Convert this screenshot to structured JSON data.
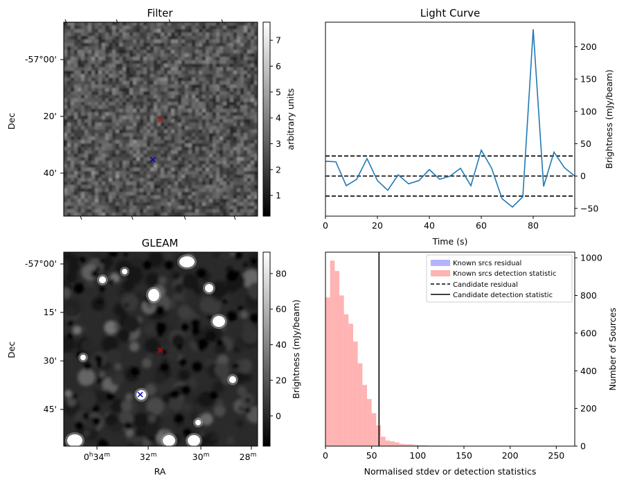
{
  "panels": {
    "filter": {
      "title": "Filter",
      "ylabel": "Dec",
      "yticks": [
        "-57°00'",
        "20'",
        "40'"
      ],
      "colorbar": {
        "label": "arbitrary units",
        "ticks": [
          "1",
          "2",
          "3",
          "4",
          "5",
          "6",
          "7"
        ],
        "range": [
          0.2,
          7.7
        ]
      },
      "markers": [
        {
          "symbol": "x",
          "color": "#d40000"
        },
        {
          "symbol": "x",
          "color": "#0000cc"
        }
      ]
    },
    "gleam": {
      "title": "GLEAM",
      "ylabel": "Dec",
      "xlabel": "RA",
      "yticks": [
        "-57°00'",
        "15'",
        "30'",
        "45'"
      ],
      "xticks": [
        {
          "hh": "0",
          "mm": "34"
        },
        {
          "hh": "",
          "mm": "32"
        },
        {
          "hh": "",
          "mm": "30"
        },
        {
          "hh": "",
          "mm": "28"
        }
      ],
      "colorbar": {
        "label": "Brightness (mJy/beam)",
        "ticks": [
          "0",
          "20",
          "40",
          "60",
          "80"
        ],
        "range": [
          -17,
          92
        ]
      },
      "markers": [
        {
          "symbol": "x",
          "color": "#d40000"
        },
        {
          "symbol": "x",
          "color": "#0000cc"
        }
      ]
    }
  },
  "chart_data": [
    {
      "type": "line",
      "title": "Light Curve",
      "xlabel": "Time (s)",
      "ylabel": "Brightness (mJy/beam)",
      "xlim": [
        0,
        96
      ],
      "ylim": [
        -62,
        238
      ],
      "xticks": [
        0,
        20,
        40,
        60,
        80
      ],
      "yticks": [
        -50,
        0,
        50,
        100,
        150,
        200
      ],
      "color": "#1f77b4",
      "x": [
        0,
        4,
        8,
        12,
        16,
        20,
        24,
        28,
        32,
        36,
        40,
        44,
        48,
        52,
        56,
        60,
        64,
        68,
        72,
        76,
        80,
        84,
        88,
        92,
        96
      ],
      "y": [
        23,
        22,
        -15,
        -5,
        27,
        -7,
        -22,
        2,
        -12,
        -7,
        10,
        -5,
        0,
        12,
        -15,
        40,
        12,
        -35,
        -48,
        -32,
        227,
        -16,
        37,
        13,
        0
      ],
      "hlines": [
        31,
        0,
        -31
      ]
    },
    {
      "type": "bar",
      "ylabel": "Number of Sources",
      "xlabel": "Normalised stdev or detection statistics",
      "xlim": [
        0,
        270
      ],
      "ylim": [
        0,
        1030
      ],
      "xticks": [
        0,
        50,
        100,
        150,
        200,
        250
      ],
      "yticks": [
        0,
        200,
        400,
        600,
        800,
        1000
      ],
      "bin_width": 5,
      "color": "#ff9999",
      "values": [
        790,
        985,
        930,
        800,
        700,
        650,
        555,
        440,
        325,
        250,
        175,
        110,
        50,
        30,
        25,
        20,
        12,
        10,
        10,
        7,
        5,
        5,
        3,
        3,
        3,
        2,
        2,
        2,
        2,
        2,
        1,
        1,
        1,
        1,
        1,
        1,
        1,
        1,
        1,
        1,
        1,
        1,
        1,
        1,
        1,
        1,
        1,
        1,
        1,
        1,
        1,
        1,
        1,
        1
      ],
      "vline": 58,
      "legend": [
        {
          "label": "Known srcs residual",
          "color": "#b3b3ff",
          "style": "patch"
        },
        {
          "label": "Known srcs detection statistic",
          "color": "#ffb3b3",
          "style": "patch"
        },
        {
          "label": "Candidate residual",
          "color": "#000000",
          "style": "dashed"
        },
        {
          "label": "Candidate detection statistic",
          "color": "#000000",
          "style": "solid"
        }
      ],
      "legend_position": "top-right"
    }
  ]
}
